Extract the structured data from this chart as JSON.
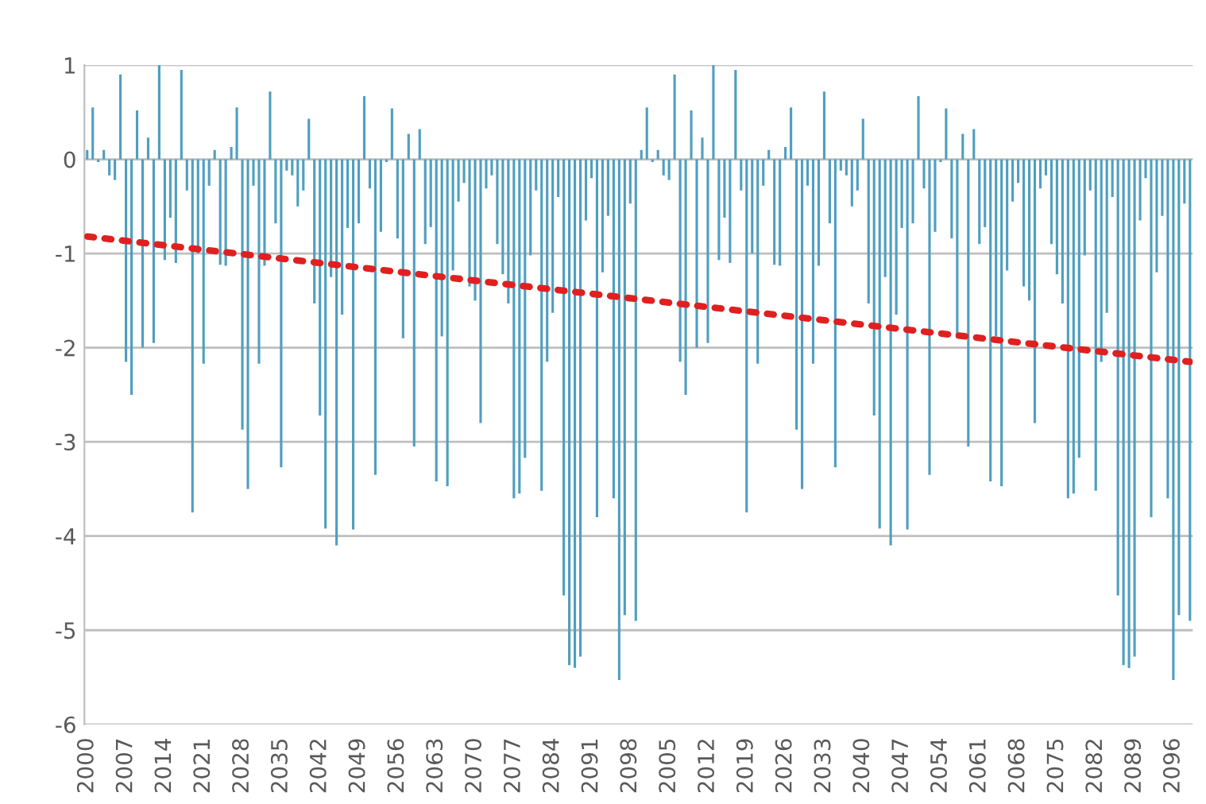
{
  "chart_data": {
    "type": "bar",
    "categories": [
      "2000",
      null,
      null,
      null,
      null,
      null,
      null,
      "2007",
      null,
      null,
      null,
      null,
      null,
      null,
      "2014",
      null,
      null,
      null,
      null,
      null,
      null,
      "2021",
      null,
      null,
      null,
      null,
      null,
      null,
      "2028",
      null,
      null,
      null,
      null,
      null,
      null,
      "2035",
      null,
      null,
      null,
      null,
      null,
      null,
      "2042",
      null,
      null,
      null,
      null,
      null,
      null,
      "2049",
      null,
      null,
      null,
      null,
      null,
      null,
      "2056",
      null,
      null,
      null,
      null,
      null,
      null,
      "2063",
      null,
      null,
      null,
      null,
      null,
      null,
      "2070",
      null,
      null,
      null,
      null,
      null,
      null,
      "2077",
      null,
      null,
      null,
      null,
      null,
      null,
      "2084",
      null,
      null,
      null,
      null,
      null,
      null,
      "2091",
      null,
      null,
      null,
      null,
      null,
      null,
      "2098",
      null,
      null,
      null,
      null,
      null,
      null,
      "2005",
      null,
      null,
      null,
      null,
      null,
      null,
      "2012",
      null,
      null,
      null,
      null,
      null,
      null,
      "2019",
      null,
      null,
      null,
      null,
      null,
      null,
      "2026",
      null,
      null,
      null,
      null,
      null,
      null,
      "2033",
      null,
      null,
      null,
      null,
      null,
      null,
      "2040",
      null,
      null,
      null,
      null,
      null,
      null,
      "2047",
      null,
      null,
      null,
      null,
      null,
      null,
      "2054",
      null,
      null,
      null,
      null,
      null,
      null,
      "2061",
      null,
      null,
      null,
      null,
      null,
      null,
      "2068",
      null,
      null,
      null,
      null,
      null,
      null,
      "2075",
      null,
      null,
      null,
      null,
      null,
      null,
      "2082",
      null,
      null,
      null,
      null,
      null,
      null,
      "2089",
      null,
      null,
      null,
      null,
      null,
      null,
      "2096",
      null,
      null,
      null
    ],
    "series": [
      {
        "color": "#4f9fbf",
        "values": [
          0.1,
          0.55,
          -0.03,
          0.1,
          -0.17,
          -0.22,
          0.9,
          -2.15,
          -2.5,
          0.52,
          -2.0,
          0.23,
          -1.95,
          1.0,
          -1.07,
          -0.62,
          -1.1,
          0.95,
          -0.33,
          -3.75,
          -1.0,
          -2.17,
          -0.28,
          0.1,
          -1.12,
          -1.13,
          0.13,
          0.55,
          -2.87,
          -3.5,
          -0.28,
          -2.17,
          -1.13,
          0.72,
          -0.68,
          -3.27,
          -0.12,
          -0.17,
          -0.5,
          -0.33,
          0.43,
          -1.53,
          -2.72,
          -3.92,
          -1.25,
          -4.1,
          -1.65,
          -0.73,
          -3.93,
          -0.68,
          0.67,
          -0.31,
          -3.35,
          -0.77,
          -0.03,
          0.54,
          -0.84,
          -1.9,
          0.27,
          -3.05,
          0.32,
          -0.9,
          -0.72,
          -3.42,
          -1.88,
          -3.47,
          -1.18,
          -0.45,
          -0.25,
          -1.35,
          -1.5,
          -2.8,
          -0.31,
          -0.17,
          -0.9,
          -1.22,
          -1.53,
          -3.6,
          -3.55,
          -3.17,
          -1.02,
          -0.33,
          -3.52,
          -2.15,
          -1.63,
          -0.4,
          -4.63,
          -5.37,
          -5.4,
          -5.28,
          -0.65,
          -0.2,
          -3.8,
          -1.2,
          -0.6,
          -3.6,
          -5.53,
          -4.84,
          -0.47,
          -4.9,
          0.1,
          0.55,
          -0.03,
          0.1,
          -0.17,
          -0.22,
          0.9,
          -2.15,
          -2.5,
          0.52,
          -2.0,
          0.23,
          -1.95,
          1.0,
          -1.07,
          -0.62,
          -1.1,
          0.95,
          -0.33,
          -3.75,
          -1.0,
          -2.17,
          -0.28,
          0.1,
          -1.12,
          -1.13,
          0.13,
          0.55,
          -2.87,
          -3.5,
          -0.28,
          -2.17,
          -1.13,
          0.72,
          -0.68,
          -3.27,
          -0.12,
          -0.17,
          -0.5,
          -0.33,
          0.43,
          -1.53,
          -2.72,
          -3.92,
          -1.25,
          -4.1,
          -1.65,
          -0.73,
          -3.93,
          -0.68,
          0.67,
          -0.31,
          -3.35,
          -0.77,
          -0.03,
          0.54,
          -0.84,
          -1.9,
          0.27,
          -3.05,
          0.32,
          -0.9,
          -0.72,
          -3.42,
          -1.88,
          -3.47,
          -1.18,
          -0.45,
          -0.25,
          -1.35,
          -1.5,
          -2.8,
          -0.31,
          -0.17,
          -0.9,
          -1.22,
          -1.53,
          -3.6,
          -3.55,
          -3.17,
          -1.02,
          -0.33,
          -3.52,
          -2.15,
          -1.63,
          -0.4,
          -4.63,
          -5.37,
          -5.4,
          -5.28,
          -0.65,
          -0.2,
          -3.8,
          -1.2,
          -0.6,
          -3.6,
          -5.53,
          -4.84,
          -0.47,
          -4.9
        ]
      },
      {
        "type": "line",
        "color": "#e02020",
        "line_style": "dotted",
        "marker": "none",
        "values": [
          -0.82,
          null,
          null,
          null,
          null,
          null,
          null,
          null,
          null,
          null,
          null,
          null,
          null,
          null,
          null,
          null,
          null,
          null,
          null,
          null,
          null,
          null,
          null,
          null,
          null,
          null,
          null,
          null,
          null,
          null,
          null,
          null,
          null,
          null,
          null,
          null,
          null,
          null,
          null,
          null,
          null,
          null,
          null,
          null,
          null,
          null,
          null,
          null,
          null,
          null,
          null,
          null,
          null,
          null,
          null,
          null,
          null,
          null,
          null,
          null,
          null,
          null,
          null,
          null,
          null,
          null,
          null,
          null,
          null,
          null,
          null,
          null,
          null,
          null,
          null,
          null,
          null,
          null,
          null,
          null,
          null,
          null,
          null,
          null,
          null,
          null,
          null,
          null,
          null,
          null,
          null,
          null,
          null,
          null,
          null,
          null,
          null,
          null,
          null,
          null,
          null,
          null,
          null,
          null,
          null,
          null,
          null,
          null,
          null,
          null,
          null,
          null,
          null,
          null,
          null,
          null,
          null,
          null,
          null,
          null,
          null,
          null,
          null,
          null,
          null,
          null,
          null,
          null,
          null,
          null,
          null,
          null,
          null,
          null,
          null,
          null,
          null,
          null,
          null,
          null,
          null,
          null,
          null,
          null,
          null,
          null,
          null,
          null,
          null,
          null,
          null,
          null,
          null,
          null,
          null,
          null,
          null,
          null,
          null,
          null,
          null,
          null,
          null,
          null,
          null,
          null,
          null,
          null,
          null,
          null,
          null,
          null,
          null,
          null,
          null,
          null,
          null,
          null,
          null,
          null,
          null,
          null,
          null,
          null,
          null,
          null,
          null,
          null,
          null,
          null,
          null,
          null,
          null,
          null,
          null,
          null,
          null,
          null,
          null,
          -2.15
        ]
      }
    ],
    "ylim": [
      -6,
      1
    ],
    "yticks": [
      -6,
      -5,
      -4,
      -3,
      -2,
      -1,
      0,
      1
    ],
    "grid": "y",
    "legend": false
  }
}
